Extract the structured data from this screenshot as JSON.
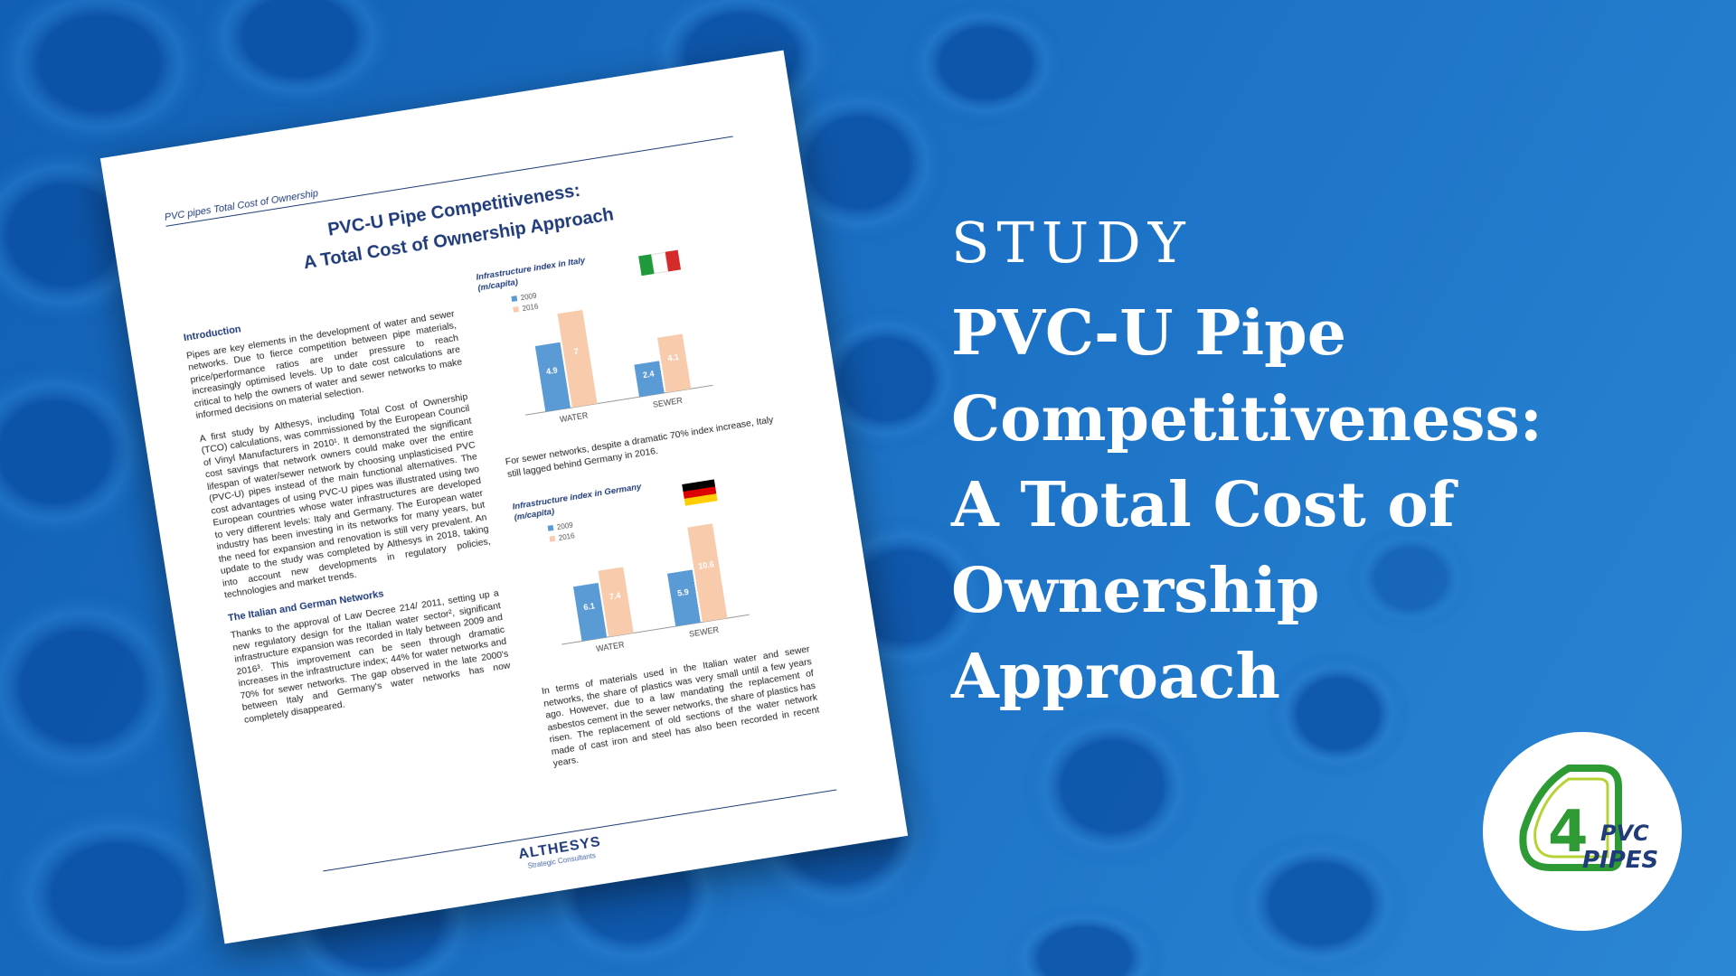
{
  "banner": {
    "kicker": "STUDY",
    "title_lines": [
      "PVC-U Pipe",
      "Competitiveness:",
      "A Total Cost of",
      "Ownership",
      "Approach"
    ]
  },
  "document": {
    "header": "PVC pipes Total Cost of Ownership",
    "title_line1": "PVC-U Pipe Competitiveness:",
    "title_line2": "A Total Cost of Ownership Approach",
    "intro_heading": "Introduction",
    "intro_p1": "Pipes are key elements in the development of water and sewer networks. Due to fierce competition between pipe materials, price/performance ratios are under pressure to reach increasingly optimised levels. Up to date cost calculations are critical to help the owners of water and sewer networks to make informed decisions on material selection.",
    "intro_p2": "A first study by Althesys, including Total Cost of Ownership (TCO) calculations, was commissioned by the European Council of Vinyl Manufacturers in 2010¹. It demonstrated the significant cost savings that network owners could make over the entire lifespan of water/sewer network by choosing unplasticised PVC (PVC-U) pipes instead of the main functional alternatives. The cost advantages of using PVC-U pipes was illustrated using two European countries whose water infrastructures are developed to very different levels: Italy and Germany. The European water industry has been investing in its networks for many years, but the need for expansion and renovation is still very prevalent. An update to the study was completed by Althesys in 2018, taking into account new developments in regulatory policies, technologies and market trends.",
    "section2_heading": "The Italian and German Networks",
    "section2_p1": "Thanks to the approval of Law Decree 214/ 2011, setting up a new regulatory design for the Italian water sector², significant infrastructure expansion was recorded in Italy between 2009 and 2016³. This improvement can be seen through dramatic increases in the infrastructure index; 44% for water networks and 70% for sewer networks. The gap observed in the late 2000's between Italy and Germany's water networks has now completely disappeared.",
    "chart_italy_caption": "For sewer networks, despite a dramatic 70% index increase, Italy still lagged behind Germany in 2016.",
    "materials_paragraph": "In terms of materials used in the Italian water and sewer networks, the share of plastics was very small until a few years ago. However, due to a law mandating the replacement of asbestos cement in the sewer networks, the share of plastics has risen. The replacement of old sections of the water network made of cast iron and steel has also been recorded in recent years.",
    "footer_logo": "ALTHESYS",
    "footer_logo_sub": "Strategic Consultants"
  },
  "chart_data": [
    {
      "type": "bar",
      "title": "Infrastructure index in Italy",
      "ylabel": "(m/capita)",
      "categories": [
        "WATER",
        "SEWER"
      ],
      "series": [
        {
          "name": "2009",
          "values": [
            4.9,
            2.4
          ]
        },
        {
          "name": "2016",
          "values": [
            7,
            4.1
          ]
        }
      ],
      "ylim": [
        0,
        8
      ],
      "legend": "top-left",
      "colors": {
        "2009": "#5b9bd5",
        "2016": "#f8cbad"
      }
    },
    {
      "type": "bar",
      "title": "Infrastructure index in Germany",
      "ylabel": "(m/capita)",
      "categories": [
        "WATER",
        "SEWER"
      ],
      "series": [
        {
          "name": "2009",
          "values": [
            6.1,
            5.9
          ]
        },
        {
          "name": "2016",
          "values": [
            7.4,
            10.6
          ]
        }
      ],
      "ylim": [
        0,
        12
      ],
      "legend": "top-left",
      "colors": {
        "2009": "#5b9bd5",
        "2016": "#f8cbad"
      }
    }
  ],
  "logo": {
    "mark": "4",
    "line1": "PVC",
    "line2": "PIPES",
    "green": "#2e9a33",
    "navy": "#1f3b79"
  }
}
